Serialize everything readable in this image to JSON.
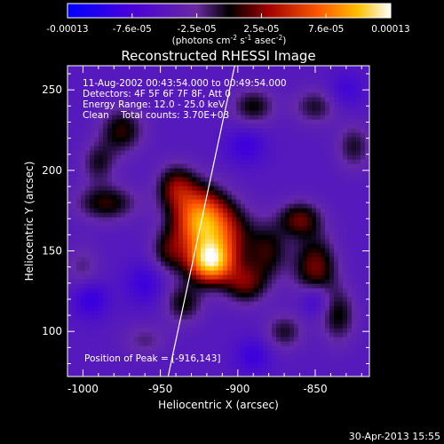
{
  "chart_data": {
    "type": "heatmap",
    "title": "Reconstructed RHESSI Image",
    "xlabel": "Heliocentric X (arcsec)",
    "ylabel": "Heliocentric Y (arcsec)",
    "xlim": [
      -1010,
      -815
    ],
    "ylim": [
      72,
      265
    ],
    "x_ticks": [
      -1000,
      -950,
      -900,
      -850
    ],
    "y_ticks": [
      100,
      150,
      200,
      250
    ],
    "colorbar": {
      "ticks": [
        "-0.00013",
        "-7.6e-05",
        "-2.5e-05",
        "2.5e-05",
        "7.6e-05",
        "0.00013"
      ],
      "unit_main": "(photons cm",
      "unit_sup1": "-2",
      "unit_mid": " s",
      "unit_sup2": "-1",
      "unit_end": " asec",
      "unit_sup3": "-2",
      "unit_close": ")",
      "range": [
        -0.00013,
        0.00013
      ]
    },
    "annotations": [
      "11-Aug-2002 00:43:54.000 to 00:49:54.000",
      "Detectors: 4F 5F 6F 7F 8F, Att 0",
      "Energy Range: 12.0 - 25.0 keV",
      "Clean    Total counts: 3.70E+03"
    ],
    "peak_label": "Position of Peak = [-916,143]",
    "peak": [
      -916,
      143
    ],
    "limb_line": [
      [
        -945,
        72
      ],
      [
        -902,
        265
      ]
    ],
    "blobs": [
      {
        "x": -918,
        "y": 143,
        "sx": 10,
        "sy": 9,
        "a": 1.0
      },
      {
        "x": -925,
        "y": 170,
        "sx": 12,
        "sy": 14,
        "a": 0.85
      },
      {
        "x": -910,
        "y": 160,
        "sx": 14,
        "sy": 14,
        "a": 0.55
      },
      {
        "x": -940,
        "y": 190,
        "sx": 9,
        "sy": 10,
        "a": 0.45
      },
      {
        "x": -945,
        "y": 150,
        "sx": 8,
        "sy": 10,
        "a": 0.35
      },
      {
        "x": -935,
        "y": 118,
        "sx": 9,
        "sy": 9,
        "a": 0.35
      },
      {
        "x": -895,
        "y": 130,
        "sx": 10,
        "sy": 9,
        "a": 0.45
      },
      {
        "x": -880,
        "y": 150,
        "sx": 9,
        "sy": 12,
        "a": 0.35
      },
      {
        "x": -860,
        "y": 170,
        "sx": 10,
        "sy": 8,
        "a": 0.45
      },
      {
        "x": -850,
        "y": 140,
        "sx": 10,
        "sy": 14,
        "a": 0.5
      },
      {
        "x": -835,
        "y": 110,
        "sx": 8,
        "sy": 12,
        "a": 0.35
      },
      {
        "x": -870,
        "y": 100,
        "sx": 9,
        "sy": 8,
        "a": 0.3
      },
      {
        "x": -985,
        "y": 180,
        "sx": 14,
        "sy": 8,
        "a": 0.4
      },
      {
        "x": -990,
        "y": 205,
        "sx": 8,
        "sy": 9,
        "a": 0.3
      },
      {
        "x": -975,
        "y": 225,
        "sx": 10,
        "sy": 10,
        "a": 0.4
      },
      {
        "x": -890,
        "y": 240,
        "sx": 10,
        "sy": 8,
        "a": 0.35
      },
      {
        "x": -850,
        "y": 240,
        "sx": 10,
        "sy": 8,
        "a": 0.3
      },
      {
        "x": -1000,
        "y": 140,
        "sx": 8,
        "sy": 10,
        "a": 0.2
      },
      {
        "x": -960,
        "y": 95,
        "sx": 10,
        "sy": 7,
        "a": 0.2
      },
      {
        "x": -825,
        "y": 215,
        "sx": 8,
        "sy": 10,
        "a": 0.3
      },
      {
        "x": -895,
        "y": 215,
        "sx": 9,
        "sy": 8,
        "a": -0.25
      },
      {
        "x": -960,
        "y": 130,
        "sx": 9,
        "sy": 9,
        "a": -0.25
      },
      {
        "x": -995,
        "y": 120,
        "sx": 8,
        "sy": 8,
        "a": -0.3
      },
      {
        "x": -850,
        "y": 120,
        "sx": 7,
        "sy": 7,
        "a": -0.3
      },
      {
        "x": -890,
        "y": 85,
        "sx": 8,
        "sy": 8,
        "a": -0.25
      },
      {
        "x": -830,
        "y": 250,
        "sx": 8,
        "sy": 8,
        "a": -0.2
      }
    ]
  },
  "timestamp": "30-Apr-2013 15:55"
}
